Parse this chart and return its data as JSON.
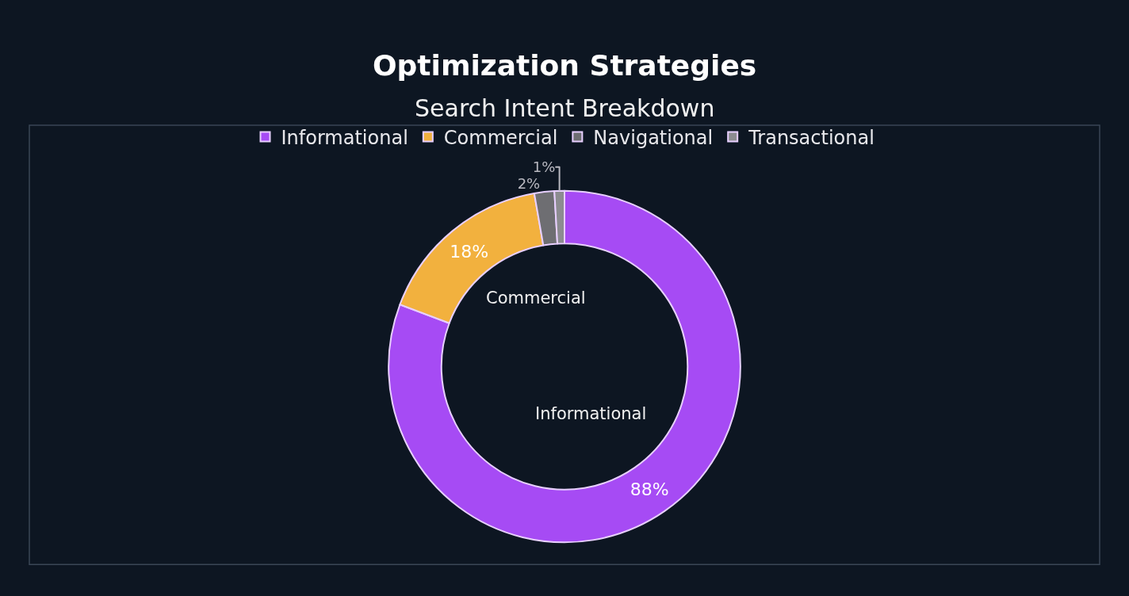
{
  "chart_data": {
    "type": "donut",
    "title": "Optimization Strategies",
    "subtitle": "Search Intent Breakdown",
    "categories": [
      "Informational",
      "Commercial",
      "Navigational",
      "Transactional"
    ],
    "values": [
      88,
      18,
      2,
      1
    ],
    "value_labels": [
      "88%",
      "18%",
      "2%",
      "1%"
    ],
    "colors": [
      "#a64bf4",
      "#f2b13e",
      "#6e6e72",
      "#8c8c90"
    ],
    "annotations": [
      "Commercial",
      "Informational"
    ],
    "legend": "top"
  }
}
